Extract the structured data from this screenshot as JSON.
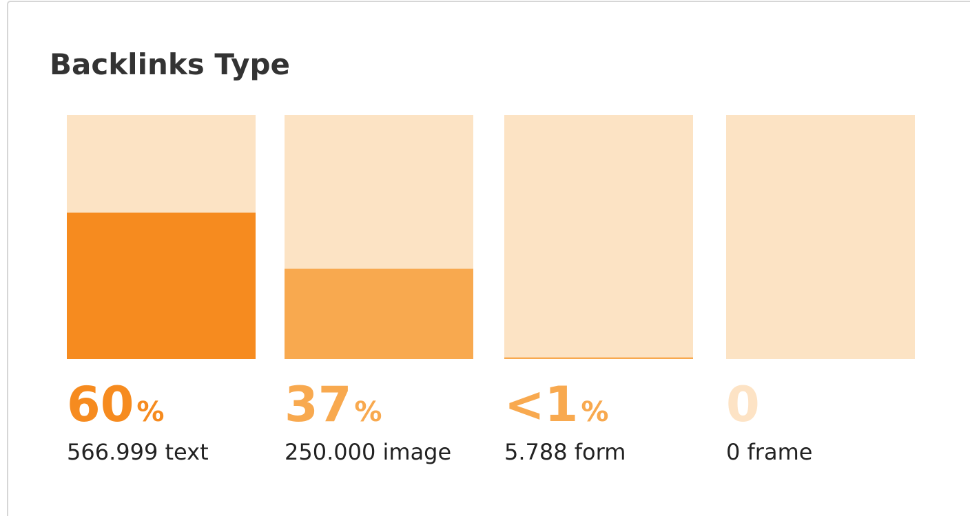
{
  "chart_data": {
    "type": "bar",
    "title": "Backlinks Type",
    "categories": [
      "566.999 text",
      "250.000 image",
      "5.788 form",
      "0 frame"
    ],
    "values": [
      60,
      37,
      0.7,
      0
    ],
    "value_labels": [
      "60%",
      "37%",
      "<1%",
      "0"
    ],
    "colors": [
      "#f68b1f",
      "#f8a94f",
      "#f8a94f",
      "#f8a94f"
    ],
    "label_colors": [
      "#f68b1f",
      "#f8a94f",
      "#f8a94f",
      "#fde3c5"
    ],
    "track_color": "#fce3c4",
    "ylim": [
      0,
      100
    ]
  }
}
